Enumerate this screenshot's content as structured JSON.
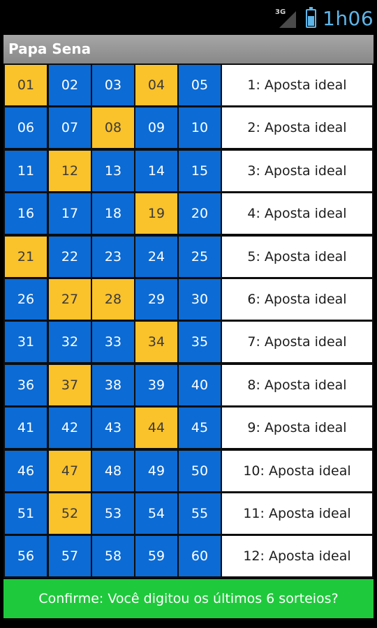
{
  "status_bar": {
    "network_label": "3G",
    "signal_icon": "signal-icon",
    "battery_icon": "battery-charging-icon",
    "time": "1h06",
    "accent_color": "#5fb5e8"
  },
  "app": {
    "title": "Papa Sena"
  },
  "grid": {
    "rows": [
      {
        "numbers": [
          "01",
          "02",
          "03",
          "04",
          "05"
        ],
        "selected": [
          true,
          false,
          false,
          true,
          false
        ],
        "label": "1: Aposta ideal"
      },
      {
        "numbers": [
          "06",
          "07",
          "08",
          "09",
          "10"
        ],
        "selected": [
          false,
          false,
          true,
          false,
          false
        ],
        "label": "2: Aposta ideal"
      },
      {
        "numbers": [
          "11",
          "12",
          "13",
          "14",
          "15"
        ],
        "selected": [
          false,
          true,
          false,
          false,
          false
        ],
        "label": "3: Aposta ideal"
      },
      {
        "numbers": [
          "16",
          "17",
          "18",
          "19",
          "20"
        ],
        "selected": [
          false,
          false,
          false,
          true,
          false
        ],
        "label": "4: Aposta ideal"
      },
      {
        "numbers": [
          "21",
          "22",
          "23",
          "24",
          "25"
        ],
        "selected": [
          true,
          false,
          false,
          false,
          false
        ],
        "label": "5: Aposta ideal"
      },
      {
        "numbers": [
          "26",
          "27",
          "28",
          "29",
          "30"
        ],
        "selected": [
          false,
          true,
          true,
          false,
          false
        ],
        "label": "6: Aposta ideal"
      },
      {
        "numbers": [
          "31",
          "32",
          "33",
          "34",
          "35"
        ],
        "selected": [
          false,
          false,
          false,
          true,
          false
        ],
        "label": "7: Aposta ideal"
      },
      {
        "numbers": [
          "36",
          "37",
          "38",
          "39",
          "40"
        ],
        "selected": [
          false,
          true,
          false,
          false,
          false
        ],
        "label": "8: Aposta ideal"
      },
      {
        "numbers": [
          "41",
          "42",
          "43",
          "44",
          "45"
        ],
        "selected": [
          false,
          false,
          false,
          true,
          false
        ],
        "label": "9: Aposta ideal"
      },
      {
        "numbers": [
          "46",
          "47",
          "48",
          "49",
          "50"
        ],
        "selected": [
          false,
          true,
          false,
          false,
          false
        ],
        "label": "10: Aposta ideal"
      },
      {
        "numbers": [
          "51",
          "52",
          "53",
          "54",
          "55"
        ],
        "selected": [
          false,
          true,
          false,
          false,
          false
        ],
        "label": "11: Aposta ideal"
      },
      {
        "numbers": [
          "56",
          "57",
          "58",
          "59",
          "60"
        ],
        "selected": [
          false,
          false,
          false,
          false,
          false
        ],
        "label": "12: Aposta ideal"
      }
    ],
    "colors": {
      "normal": "#0c6bd4",
      "selected": "#fac22b",
      "label_bg": "#ffffff"
    }
  },
  "confirm_button": {
    "label": "Confirme: Você digitou os últimos 6 sorteios?",
    "color": "#1fc93c"
  }
}
